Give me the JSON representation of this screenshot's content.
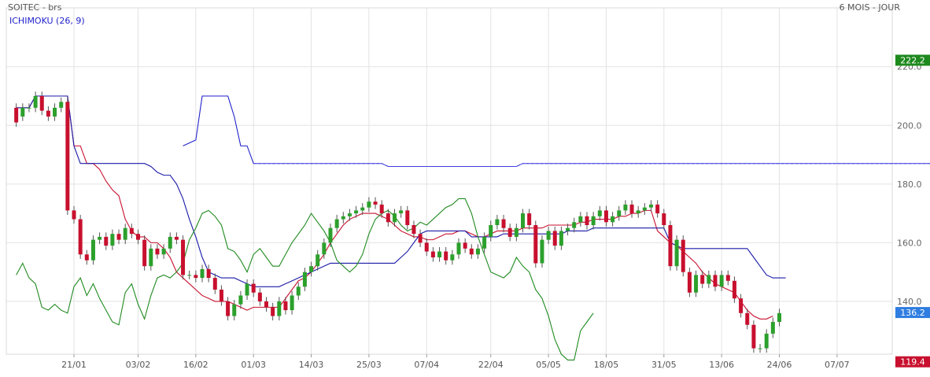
{
  "header": {
    "title": "SOITEC - brs",
    "period": "6 MOIS - JOUR",
    "indicator": "ICHIMOKU (26, 9)"
  },
  "chart_data": {
    "type": "candlestick-ichimoku",
    "yticks": [
      140,
      160,
      180,
      200,
      220
    ],
    "ylim": [
      122,
      232
    ],
    "x_tick_labels": [
      {
        "label": "21/01",
        "index": 0
      },
      {
        "label": "03/02",
        "index": 10
      },
      {
        "label": "16/02",
        "index": 19
      },
      {
        "label": "01/03",
        "index": 28
      },
      {
        "label": "14/03",
        "index": 37
      },
      {
        "label": "25/03",
        "index": 46
      },
      {
        "label": "07/04",
        "index": 55
      },
      {
        "label": "22/04",
        "index": 65
      },
      {
        "label": "05/05",
        "index": 74
      },
      {
        "label": "18/05",
        "index": 83
      },
      {
        "label": "31/05",
        "index": 92
      },
      {
        "label": "13/06",
        "index": 101
      },
      {
        "label": "24/06",
        "index": 110
      },
      {
        "label": "07/07",
        "index": 119
      }
    ],
    "price_tags": [
      {
        "label": "222.2",
        "value": 222.2,
        "color": "#1e8a1e"
      },
      {
        "label": "136.2",
        "value": 136.2,
        "color": "#2f7de1"
      },
      {
        "label": "119.4",
        "value": 119.4,
        "color": "#c8102e"
      }
    ],
    "candle_start_index": -9,
    "candles": [
      [
        206,
        201
      ],
      [
        203,
        206
      ],
      [
        206,
        206
      ],
      [
        206,
        210
      ],
      [
        210,
        205
      ],
      [
        205,
        203
      ],
      [
        203,
        206
      ],
      [
        206,
        208
      ],
      [
        208,
        171
      ],
      [
        171,
        168
      ],
      [
        168,
        156
      ],
      [
        156,
        154
      ],
      [
        154,
        161
      ],
      [
        161,
        162
      ],
      [
        162,
        159
      ],
      [
        159,
        163
      ],
      [
        163,
        161
      ],
      [
        161,
        165
      ],
      [
        165,
        163
      ],
      [
        163,
        161
      ],
      [
        161,
        152
      ],
      [
        152,
        158
      ],
      [
        158,
        156
      ],
      [
        156,
        158
      ],
      [
        158,
        162
      ],
      [
        162,
        161
      ],
      [
        161,
        149
      ],
      [
        149,
        149
      ],
      [
        149,
        148
      ],
      [
        148,
        151
      ],
      [
        151,
        148
      ],
      [
        148,
        144
      ],
      [
        144,
        140
      ],
      [
        140,
        135
      ],
      [
        135,
        139
      ],
      [
        139,
        142
      ],
      [
        142,
        146
      ],
      [
        146,
        143
      ],
      [
        143,
        140
      ],
      [
        140,
        138
      ],
      [
        138,
        135
      ],
      [
        135,
        140
      ],
      [
        140,
        137
      ],
      [
        137,
        142
      ],
      [
        142,
        145
      ],
      [
        145,
        150
      ],
      [
        150,
        152
      ],
      [
        152,
        156
      ],
      [
        156,
        160
      ],
      [
        160,
        165
      ],
      [
        165,
        168
      ],
      [
        168,
        169
      ],
      [
        169,
        170
      ],
      [
        170,
        171
      ],
      [
        171,
        172
      ],
      [
        172,
        174
      ],
      [
        174,
        173
      ],
      [
        173,
        170
      ],
      [
        170,
        167
      ],
      [
        167,
        170
      ],
      [
        170,
        171
      ],
      [
        171,
        166
      ],
      [
        166,
        163
      ],
      [
        163,
        160
      ],
      [
        160,
        157
      ],
      [
        157,
        155
      ],
      [
        155,
        157
      ],
      [
        157,
        154
      ],
      [
        154,
        156
      ],
      [
        156,
        160
      ],
      [
        160,
        158
      ],
      [
        158,
        156
      ],
      [
        156,
        158
      ],
      [
        158,
        162
      ],
      [
        162,
        166
      ],
      [
        166,
        168
      ],
      [
        168,
        165
      ],
      [
        165,
        162
      ],
      [
        162,
        165
      ],
      [
        165,
        170
      ],
      [
        170,
        166
      ],
      [
        166,
        153
      ],
      [
        153,
        161
      ],
      [
        161,
        164
      ],
      [
        164,
        159
      ],
      [
        159,
        164
      ],
      [
        164,
        165
      ],
      [
        165,
        167
      ],
      [
        167,
        169
      ],
      [
        169,
        166
      ],
      [
        166,
        169
      ],
      [
        169,
        171
      ],
      [
        171,
        167
      ],
      [
        167,
        169
      ],
      [
        169,
        171
      ],
      [
        171,
        173
      ],
      [
        173,
        170
      ],
      [
        170,
        171
      ],
      [
        171,
        172
      ],
      [
        172,
        173
      ],
      [
        173,
        170
      ],
      [
        170,
        166
      ],
      [
        166,
        152
      ],
      [
        152,
        161
      ],
      [
        161,
        150
      ],
      [
        150,
        143
      ],
      [
        143,
        149
      ],
      [
        149,
        146
      ],
      [
        146,
        149
      ],
      [
        149,
        145
      ],
      [
        145,
        149
      ],
      [
        149,
        147
      ],
      [
        147,
        141
      ],
      [
        141,
        136
      ],
      [
        136,
        132
      ],
      [
        132,
        124
      ],
      [
        124,
        124
      ],
      [
        124,
        129
      ],
      [
        129,
        133
      ],
      [
        133,
        136
      ]
    ],
    "series": [
      {
        "color": "#c8102e",
        "anchor": -9,
        "values": [
          206,
          206,
          206,
          210,
          210,
          210,
          210,
          210,
          210,
          193,
          193,
          187,
          187,
          185,
          181,
          178,
          176,
          168,
          164,
          162,
          162,
          160,
          160,
          158,
          155,
          150,
          148,
          146,
          144,
          142,
          141,
          140,
          140,
          140,
          139,
          138,
          137,
          138,
          138,
          138,
          138,
          138,
          141,
          144,
          147,
          148,
          150,
          153,
          156,
          160,
          163,
          166,
          168,
          169,
          170,
          170,
          170,
          169,
          168,
          166,
          164,
          163,
          162,
          162,
          161,
          161,
          162,
          163,
          163,
          164,
          164,
          163,
          162,
          162,
          163,
          164,
          164,
          164,
          164,
          165,
          165,
          165,
          165,
          166,
          166,
          166,
          166,
          166,
          167,
          167,
          168,
          168,
          168,
          168,
          169,
          169,
          170,
          170,
          171,
          171,
          164,
          162,
          160,
          159,
          157,
          155,
          153,
          150,
          148,
          146,
          145,
          144,
          143,
          140,
          137,
          135,
          134,
          134,
          135
        ]
      },
      {
        "color": "#1a1aa8",
        "anchor": -9,
        "values": [
          206,
          206,
          206,
          210,
          210,
          210,
          210,
          210,
          210,
          193,
          187,
          187,
          187,
          187,
          187,
          187,
          187,
          187,
          187,
          187,
          187,
          186,
          184,
          183,
          183,
          180,
          175,
          168,
          162,
          155,
          150,
          149,
          148,
          148,
          148,
          147,
          146,
          145,
          145,
          145,
          145,
          145,
          146,
          147,
          148,
          149,
          150,
          151,
          152,
          153,
          153,
          153,
          153,
          153,
          153,
          153,
          153,
          153,
          153,
          153,
          155,
          157,
          160,
          163,
          164,
          164,
          164,
          164,
          164,
          164,
          164,
          162,
          162,
          162,
          162,
          162,
          163,
          163,
          163,
          163,
          163,
          163,
          163,
          163,
          163,
          163,
          164,
          164,
          164,
          164,
          165,
          165,
          165,
          165,
          165,
          165,
          165,
          165,
          165,
          165,
          165,
          165,
          160,
          159,
          158,
          158,
          158,
          158,
          158,
          158,
          158,
          158,
          158,
          158,
          158,
          155,
          152,
          149,
          148,
          148,
          148
        ]
      },
      {
        "color": "#1f8a1f",
        "anchor": -9,
        "values": [
          149,
          153,
          148,
          146,
          138,
          137,
          139,
          137,
          136,
          145,
          148,
          142,
          146,
          141,
          137,
          133,
          132,
          143,
          146,
          139,
          134,
          142,
          148,
          149,
          148,
          150,
          153,
          161,
          165,
          170,
          171,
          169,
          166,
          158,
          157,
          154,
          150,
          156,
          158,
          155,
          152,
          152,
          156,
          160,
          163,
          166,
          170,
          167,
          164,
          160,
          154,
          152,
          150,
          152,
          156,
          163,
          168,
          170,
          171,
          169,
          166,
          164,
          165,
          167,
          166,
          168,
          170,
          172,
          173,
          175,
          175,
          170,
          162,
          156,
          150,
          149,
          148,
          150,
          155,
          152,
          150,
          144,
          141,
          135,
          127,
          122,
          120,
          120,
          130,
          133,
          136
        ]
      },
      {
        "color": "#2222cc",
        "anchor": 17,
        "values": [
          193,
          194,
          195,
          210,
          210,
          210,
          210,
          210,
          203,
          193,
          193,
          187
        ]
      }
    ],
    "cloud": {
      "color": "#4040e0",
      "fill": "rgba(100,100,235,0.40)",
      "anchor": 28,
      "span_a": [
        187,
        187,
        187,
        187,
        187,
        187,
        187,
        187,
        187,
        187,
        187,
        187,
        187,
        187,
        187,
        187,
        187,
        187,
        187,
        187,
        187,
        186,
        186,
        186,
        186,
        186,
        186,
        186,
        186,
        186,
        186,
        186,
        186,
        186,
        186,
        186,
        186,
        186,
        186,
        186,
        186,
        186,
        187,
        187,
        187,
        187,
        187,
        187,
        187,
        187,
        187,
        187,
        187,
        187,
        187,
        187,
        187,
        187,
        187,
        187,
        187,
        187,
        187,
        187,
        187,
        187,
        187,
        187,
        187,
        187,
        187,
        187,
        187,
        187,
        187,
        187,
        187,
        187,
        187,
        187,
        187,
        187,
        187,
        187,
        187,
        187,
        187,
        187,
        187,
        187,
        187,
        187,
        187,
        187,
        187,
        187,
        187,
        187,
        187,
        187,
        187,
        187,
        187,
        187,
        187,
        187,
        187
      ],
      "span_b": [
        187,
        187,
        187,
        187,
        187,
        187,
        187,
        187,
        187,
        187,
        187,
        187,
        187,
        187,
        187,
        187,
        187,
        187,
        187,
        187,
        187,
        186,
        186,
        186,
        186,
        186,
        186,
        186,
        186,
        186,
        186,
        186,
        186,
        186,
        186,
        186,
        186,
        186,
        186,
        186,
        186,
        186,
        187,
        187,
        187,
        187,
        187,
        187,
        187,
        187,
        187,
        187,
        187,
        187,
        187,
        187,
        187,
        187,
        187,
        187,
        187,
        187,
        187,
        187,
        187,
        187,
        187,
        187,
        187,
        187,
        187,
        187,
        187,
        187,
        187,
        187,
        187,
        187,
        187,
        187,
        187,
        187,
        187,
        187,
        187,
        187,
        187,
        187,
        187,
        187,
        187,
        187,
        187,
        187,
        187,
        187,
        187,
        187,
        187,
        187,
        187,
        187,
        187,
        187,
        187,
        187,
        187
      ]
    }
  }
}
